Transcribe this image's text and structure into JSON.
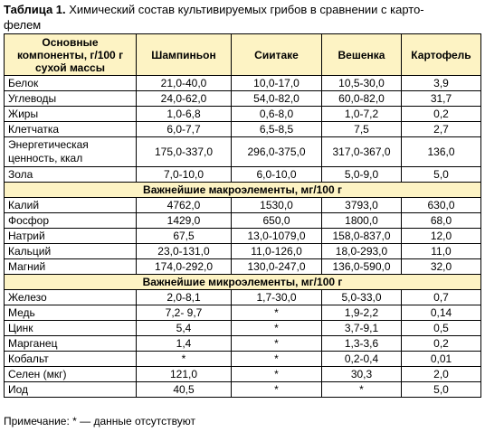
{
  "caption": {
    "label": "Таблица 1.",
    "text": " Химический состав культивируемых грибов в сравнении с карто-",
    "text_line2": "фелем"
  },
  "columns": [
    "Основные компоненты, г/100 г сухой массы",
    "Шампиньон",
    "Сиитаке",
    "Вешенка",
    "Картофель"
  ],
  "rows": [
    {
      "type": "data",
      "name": "Белок",
      "values": [
        "21,0-40,0",
        "10,0-17,0",
        "10,5-30,0",
        "3,9"
      ]
    },
    {
      "type": "data",
      "name": "Углеводы",
      "values": [
        "24,0-62,0",
        "54,0-82,0",
        "60,0-82,0",
        "31,7"
      ]
    },
    {
      "type": "data",
      "name": "Жиры",
      "values": [
        "1,0-6,8",
        "0,6-8,0",
        "1,0-7,2",
        "0,2"
      ]
    },
    {
      "type": "data",
      "name": "Клетчатка",
      "values": [
        "6,0-7,7",
        "6,5-8,5",
        "7,5",
        "2,7"
      ]
    },
    {
      "type": "tall",
      "name": "Энергетическая ценность, ккал",
      "values": [
        "175,0-337,0",
        "296,0-375,0",
        "317,0-367,0",
        "136,0"
      ]
    },
    {
      "type": "data",
      "name": "Зола",
      "values": [
        "7,0-10,0",
        "6,0-10,0",
        "5,0-9,0",
        "5,0"
      ]
    },
    {
      "type": "section",
      "name": "Важнейшие макроэлементы, мг/100 г"
    },
    {
      "type": "data",
      "name": "Калий",
      "values": [
        "4762,0",
        "1530,0",
        "3793,0",
        "630,0"
      ]
    },
    {
      "type": "data",
      "name": "Фосфор",
      "values": [
        "1429,0",
        "650,0",
        "1800,0",
        "68,0"
      ]
    },
    {
      "type": "data",
      "name": "Натрий",
      "values": [
        "67,5",
        "13,0-1079,0",
        "158,0-837,0",
        "12,0"
      ]
    },
    {
      "type": "data",
      "name": "Кальций",
      "values": [
        "23,0-131,0",
        "11,0-126,0",
        "18,0-293,0",
        "11,0"
      ]
    },
    {
      "type": "data",
      "name": "Магний",
      "values": [
        "174,0-292,0",
        "130,0-247,0",
        "136,0-590,0",
        "32,0"
      ]
    },
    {
      "type": "section",
      "name": "Важнейшие микроэлементы, мг/100 г"
    },
    {
      "type": "data",
      "name": "Железо",
      "values": [
        "2,0-8,1",
        "1,7-30,0",
        "5,0-33,0",
        "0,7"
      ]
    },
    {
      "type": "data",
      "name": "Медь",
      "values": [
        "7,2- 9,7",
        "*",
        "1,9-2,2",
        "0,14"
      ]
    },
    {
      "type": "data",
      "name": "Цинк",
      "values": [
        "5,4",
        "*",
        "3,7-9,1",
        "0,5"
      ]
    },
    {
      "type": "data",
      "name": "Марганец",
      "values": [
        "1,4",
        "*",
        "1,3-3,6",
        "0,2"
      ]
    },
    {
      "type": "data",
      "name": "Кобальт",
      "values": [
        "*",
        "*",
        "0,2-0,4",
        "0,01"
      ]
    },
    {
      "type": "data",
      "name": "Селен (мкг)",
      "values": [
        "121,0",
        "*",
        "30,3",
        "2,0"
      ]
    },
    {
      "type": "data",
      "name": "Иод",
      "values": [
        "40,5",
        "*",
        "*",
        "5,0"
      ]
    }
  ],
  "note": "Примечание: * — данные отсутствуют"
}
